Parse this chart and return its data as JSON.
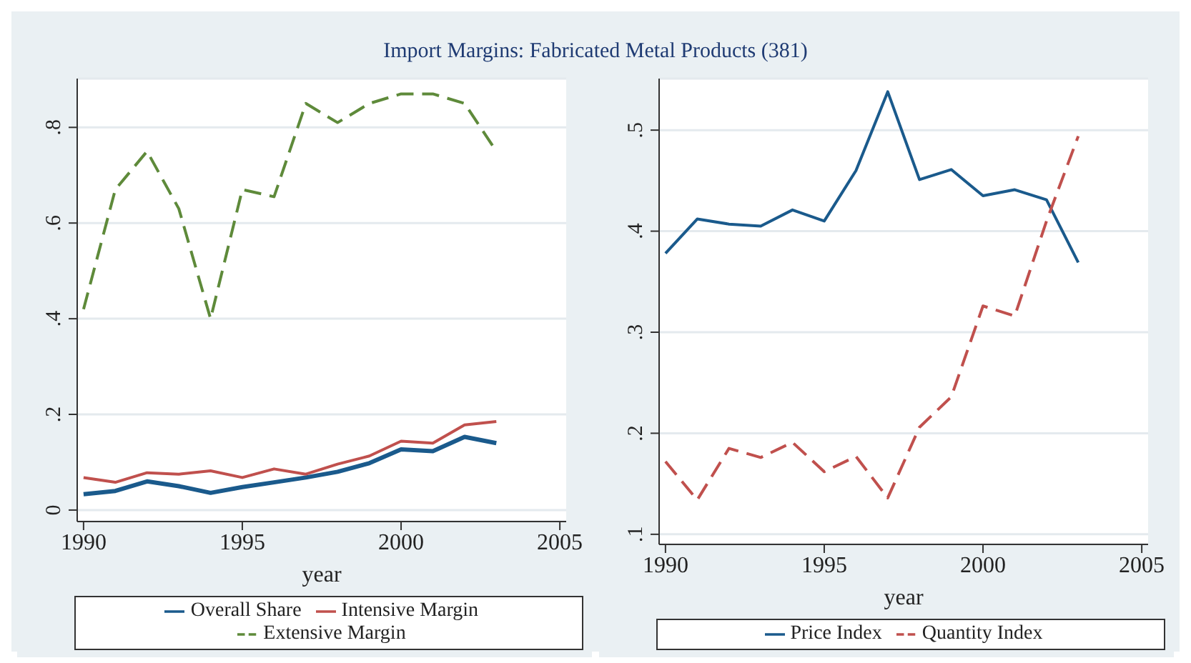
{
  "chart_data": [
    {
      "type": "line",
      "title": "Import Margins: Fabricated Metal Products (381)",
      "xlabel": "year",
      "x": [
        1990,
        1991,
        1992,
        1993,
        1994,
        1995,
        1996,
        1997,
        1998,
        1999,
        2000,
        2001,
        2002,
        2003
      ],
      "xlim": [
        1989.8,
        2005.2
      ],
      "xticks": [
        1990,
        1995,
        2000,
        2005
      ],
      "ylim": [
        -0.024,
        0.902
      ],
      "yticks": [
        {
          "value": 0,
          "label": "0"
        },
        {
          "value": 0.2,
          "label": ".2"
        },
        {
          "value": 0.4,
          "label": ".4"
        },
        {
          "value": 0.6,
          "label": ".6"
        },
        {
          "value": 0.8,
          "label": ".8"
        }
      ],
      "grid": "y",
      "legend": "bottom",
      "marker": "none",
      "series": [
        {
          "name": "Overall Share",
          "color": "#1a5a8c",
          "line_style": "solid",
          "values": [
            0.033,
            0.04,
            0.06,
            0.05,
            0.036,
            0.048,
            0.058,
            0.068,
            0.08,
            0.098,
            0.127,
            0.123,
            0.153,
            0.14
          ]
        },
        {
          "name": "Intensive Margin",
          "color": "#c0504d",
          "line_style": "solid",
          "values": [
            0.068,
            0.058,
            0.078,
            0.075,
            0.082,
            0.068,
            0.086,
            0.075,
            0.096,
            0.113,
            0.144,
            0.14,
            0.178,
            0.185
          ]
        },
        {
          "name": "Extensive Margin",
          "color": "#5e8a3a",
          "line_style": "dashed",
          "values": [
            0.42,
            0.67,
            0.75,
            0.63,
            0.4,
            0.67,
            0.655,
            0.85,
            0.81,
            0.85,
            0.87,
            0.87,
            0.85,
            0.75
          ]
        }
      ]
    },
    {
      "type": "line",
      "xlabel": "year",
      "x": [
        1990,
        1991,
        1992,
        1993,
        1994,
        1995,
        1996,
        1997,
        1998,
        1999,
        2000,
        2001,
        2002,
        2003
      ],
      "xlim": [
        1989.8,
        2005.2
      ],
      "xticks": [
        1990,
        1995,
        2000,
        2005
      ],
      "ylim": [
        0.09,
        0.551
      ],
      "yticks": [
        {
          "value": 0.1,
          "label": ".1"
        },
        {
          "value": 0.2,
          "label": ".2"
        },
        {
          "value": 0.3,
          "label": ".3"
        },
        {
          "value": 0.4,
          "label": ".4"
        },
        {
          "value": 0.5,
          "label": ".5"
        }
      ],
      "grid": "y",
      "legend": "bottom",
      "marker": "none",
      "series": [
        {
          "name": "Price Index",
          "color": "#1a5a8c",
          "line_style": "solid",
          "values": [
            0.378,
            0.412,
            0.407,
            0.405,
            0.421,
            0.41,
            0.46,
            0.538,
            0.451,
            0.461,
            0.435,
            0.441,
            0.431,
            0.369
          ]
        },
        {
          "name": "Quantity Index",
          "color": "#c0504d",
          "line_style": "dashed",
          "values": [
            0.172,
            0.134,
            0.185,
            0.176,
            0.191,
            0.162,
            0.177,
            0.136,
            0.206,
            0.236,
            0.326,
            0.316,
            0.41,
            0.494
          ]
        }
      ]
    }
  ]
}
